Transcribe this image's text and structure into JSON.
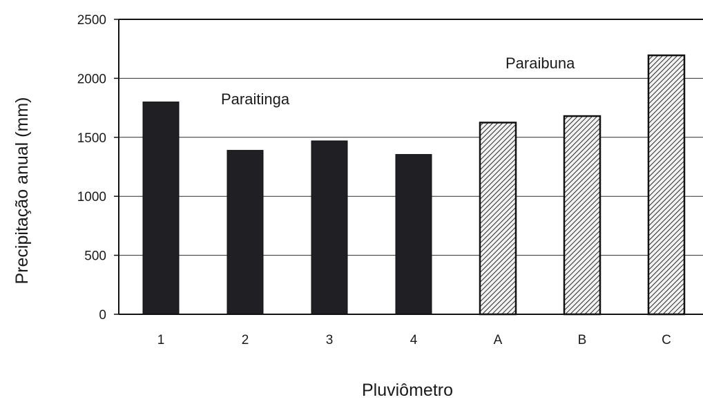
{
  "chart_data": {
    "type": "bar",
    "title": "",
    "xlabel": "Pluviômetro",
    "ylabel": "Precipitação anual (mm)",
    "categories": [
      "1",
      "2",
      "3",
      "4",
      "A",
      "B",
      "C"
    ],
    "values": [
      1800,
      1390,
      1470,
      1355,
      1625,
      1680,
      2195
    ],
    "ylim": [
      0,
      2500
    ],
    "yticks": [
      "0",
      "500",
      "1000",
      "1500",
      "2000",
      "2500"
    ],
    "grid": true,
    "groups": [
      {
        "label": "Paraitinga",
        "categories": [
          "1",
          "2",
          "3",
          "4"
        ],
        "fill": "solid"
      },
      {
        "label": "Paraibuna",
        "categories": [
          "A",
          "B",
          "C"
        ],
        "fill": "hatched"
      }
    ],
    "colors": {
      "solid_bar": "#1f1f24",
      "hatch_line": "#2a2a2a",
      "hatch_bg": "#f2f2f2",
      "grid": "#2a2a2a",
      "axis": "#111111"
    }
  }
}
